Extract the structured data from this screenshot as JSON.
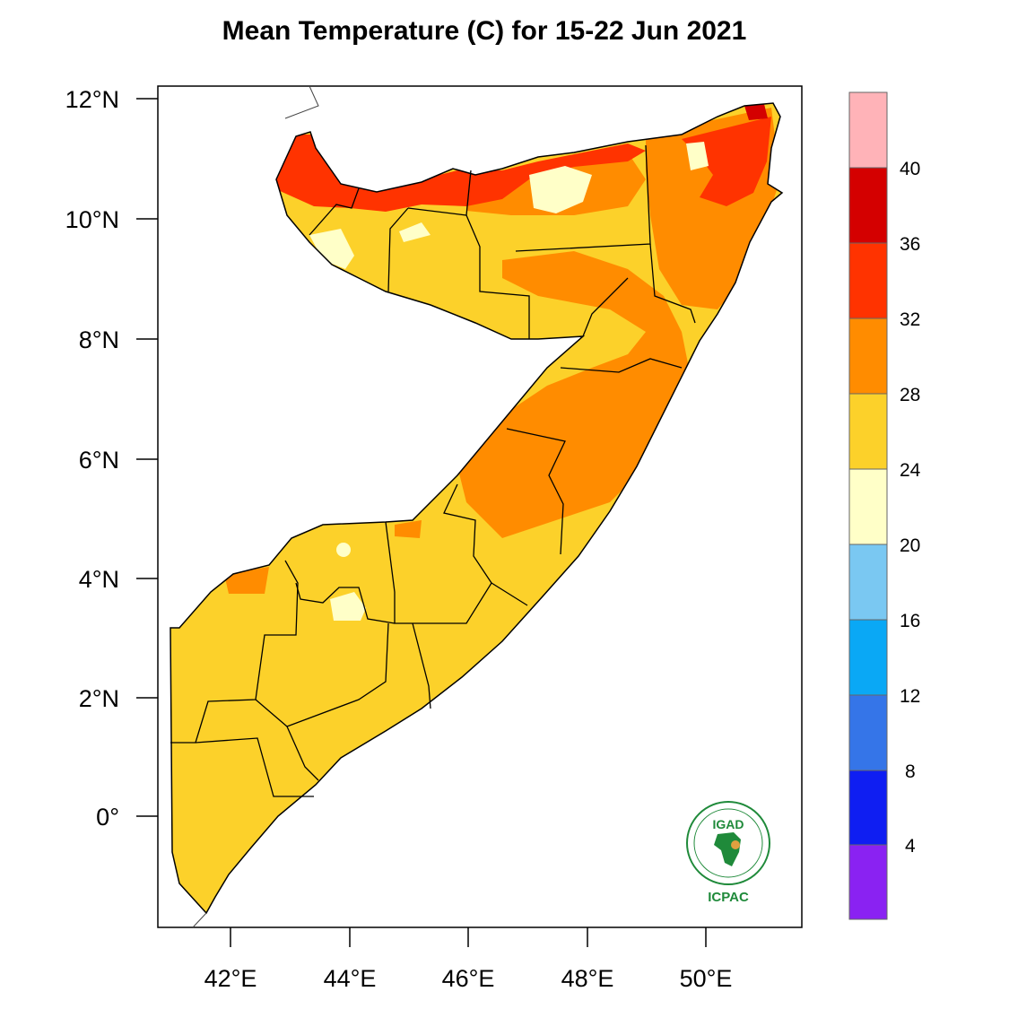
{
  "title": "Mean Temperature (C) for 15-22 Jun 2021",
  "map": {
    "lat_ticks": [
      "12°N",
      "10°N",
      "8°N",
      "6°N",
      "4°N",
      "2°N",
      "0°"
    ],
    "lon_ticks": [
      "42°E",
      "44°E",
      "46°E",
      "48°E",
      "50°E"
    ],
    "lon_range": [
      40.8,
      51.6
    ],
    "lat_range": [
      -1.8,
      12.2
    ]
  },
  "colorbar": {
    "labels": [
      "40",
      "36",
      "32",
      "28",
      "24",
      "20",
      "16",
      "12",
      "8",
      "4"
    ],
    "bins": [
      {
        "range": ">40",
        "color": "#ffb3b8"
      },
      {
        "range": "36-40",
        "color": "#d40000"
      },
      {
        "range": "32-36",
        "color": "#ff3300"
      },
      {
        "range": "28-32",
        "color": "#ff8c00"
      },
      {
        "range": "24-28",
        "color": "#fcd12a"
      },
      {
        "range": "20-24",
        "color": "#ffffc8"
      },
      {
        "range": "16-20",
        "color": "#7ac8f2"
      },
      {
        "range": "12-16",
        "color": "#0aa8f5"
      },
      {
        "range": "8-12",
        "color": "#3575e8"
      },
      {
        "range": "4-8",
        "color": "#0f1ef2"
      },
      {
        "range": "<4",
        "color": "#8a22f2"
      }
    ]
  },
  "logo": {
    "top_text": "IGAD",
    "bottom_text": "ICPAC",
    "icon": "igad-africa-emblem-icon"
  }
}
